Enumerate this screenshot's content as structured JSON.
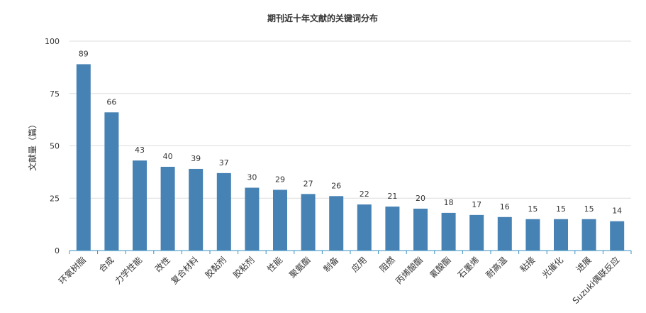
{
  "chart_data": {
    "type": "bar",
    "title": "期刊近十年文献的关键词分布",
    "xlabel": "",
    "ylabel": "文献量（篇）",
    "ylim": [
      0,
      100
    ],
    "yticks": [
      0,
      25,
      50,
      75,
      100
    ],
    "grid": true,
    "legend": "none",
    "bar_color": "#4682b4",
    "categories": [
      "环氧树脂",
      "合成",
      "力学性能",
      "改性",
      "复合材料",
      "胶黏剂",
      "胶粘剂",
      "性能",
      "聚氨酯",
      "制备",
      "应用",
      "阻燃",
      "丙烯酸酯",
      "氰酸酯",
      "石墨烯",
      "耐高温",
      "粘接",
      "光催化",
      "进展",
      "Suzuki偶联反应"
    ],
    "values": [
      89,
      66,
      43,
      40,
      39,
      37,
      30,
      29,
      27,
      26,
      22,
      21,
      20,
      18,
      17,
      16,
      15,
      15,
      15,
      14
    ]
  }
}
